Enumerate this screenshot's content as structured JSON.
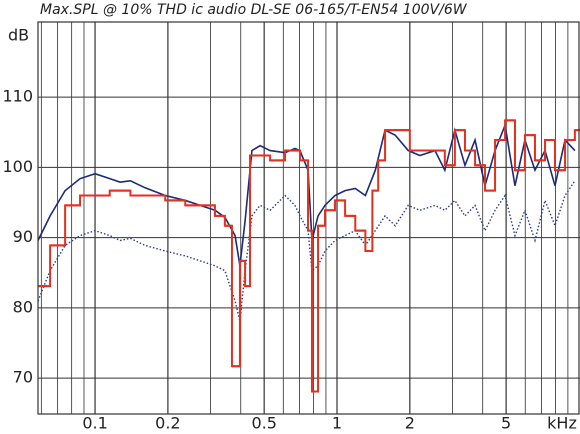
{
  "chart_data": {
    "type": "line",
    "title": "Max.SPL @ 10% THD ic audio DL-SE 06-165/T-EN54 100V/6W",
    "y_label": "dB",
    "x_label": "kHz",
    "log_x": true,
    "grid": true,
    "xlim": [
      0.0581,
      10.1
    ],
    "ylim": [
      64.9,
      120.7
    ],
    "xticks": [
      0.1,
      0.2,
      0.5,
      1,
      2,
      5
    ],
    "xminor": [
      0.06,
      0.07,
      0.08,
      0.09,
      0.3,
      0.4,
      0.6,
      0.7,
      0.8,
      0.9,
      3,
      4,
      6,
      7,
      8,
      9,
      10
    ],
    "yticks": [
      70,
      80,
      90,
      100,
      110
    ],
    "series": [
      {
        "color": "#1c2a78",
        "style": "solid",
        "x": [
          0.0581,
          0.0652,
          0.0752,
          0.0867,
          0.1,
          0.115,
          0.127,
          0.14,
          0.161,
          0.195,
          0.236,
          0.272,
          0.313,
          0.344,
          0.379,
          0.397,
          0.417,
          0.445,
          0.481,
          0.529,
          0.61,
          0.67,
          0.703,
          0.759,
          0.788,
          0.835,
          0.892,
          0.981,
          1.08,
          1.19,
          1.31,
          1.44,
          1.58,
          1.74,
          1.97,
          2.2,
          2.54,
          2.79,
          3.07,
          3.38,
          3.72,
          4.09,
          4.5,
          4.95,
          5.44,
          5.98,
          6.58,
          7.24,
          7.96,
          8.76,
          9.62
        ],
        "values": [
          89.6,
          93.1,
          96.7,
          98.4,
          99.1,
          98.4,
          97.9,
          98.1,
          97.1,
          96,
          95.3,
          94.6,
          93.9,
          92.9,
          90.3,
          86,
          92.4,
          102.4,
          103.1,
          102.4,
          102.1,
          102.7,
          102.4,
          99.6,
          89.6,
          93.1,
          94.6,
          96,
          96.7,
          97,
          96,
          99.6,
          105.3,
          104.6,
          102.4,
          101.7,
          102.4,
          99.6,
          105.3,
          100.3,
          103.9,
          97.4,
          102.4,
          106,
          97.4,
          103.9,
          99.6,
          102.4,
          97.4,
          103.9,
          102.4
        ]
      },
      {
        "color": "#2a3a90",
        "style": "dotted",
        "x": [
          0.0581,
          0.0652,
          0.0752,
          0.0867,
          0.1,
          0.115,
          0.127,
          0.14,
          0.161,
          0.195,
          0.236,
          0.272,
          0.313,
          0.344,
          0.379,
          0.397,
          0.417,
          0.445,
          0.481,
          0.529,
          0.61,
          0.67,
          0.703,
          0.759,
          0.788,
          0.835,
          0.892,
          0.981,
          1.08,
          1.19,
          1.31,
          1.44,
          1.58,
          1.74,
          1.97,
          2.2,
          2.54,
          2.79,
          3.07,
          3.38,
          3.72,
          4.09,
          4.5,
          4.95,
          5.44,
          5.98,
          6.58,
          7.24,
          7.96,
          8.76,
          9.62
        ],
        "values": [
          81,
          85.3,
          88.9,
          90.3,
          91,
          90.3,
          89.6,
          89.9,
          88.9,
          88.1,
          87.4,
          86.7,
          86,
          85.3,
          81,
          78.1,
          85.3,
          93.1,
          94.6,
          93.9,
          96,
          94.6,
          93.1,
          91,
          85.3,
          86,
          88.1,
          89.6,
          90.3,
          91,
          88.9,
          91,
          93.1,
          91.7,
          94.6,
          93.9,
          94.6,
          93.9,
          95.3,
          93.1,
          94.6,
          91,
          93.9,
          96,
          90.3,
          93.9,
          89.6,
          95.3,
          91.7,
          96,
          98.1
        ]
      },
      {
        "color": "#e2321f",
        "style": "step",
        "x": [
          0.0581,
          0.0652,
          0.0752,
          0.0867,
          0.1,
          0.115,
          0.14,
          0.161,
          0.195,
          0.236,
          0.272,
          0.313,
          0.344,
          0.368,
          0.397,
          0.417,
          0.437,
          0.481,
          0.529,
          0.61,
          0.703,
          0.759,
          0.788,
          0.835,
          0.892,
          0.981,
          1.08,
          1.19,
          1.31,
          1.4,
          1.48,
          1.58,
          2.0,
          2.54,
          2.79,
          3.07,
          3.38,
          3.72,
          4.09,
          4.5,
          4.95,
          5.44,
          5.98,
          6.58,
          7.24,
          7.96,
          8.76,
          9.62
        ],
        "values": [
          83.1,
          88.9,
          94.6,
          96,
          96,
          96.7,
          96,
          96,
          95.3,
          94.6,
          94.6,
          93.1,
          91.7,
          71.7,
          86.7,
          83.1,
          101.7,
          101.7,
          101,
          102.4,
          101,
          91,
          68.1,
          91.7,
          93.9,
          95.3,
          93.1,
          91,
          88.1,
          96.7,
          101,
          105.3,
          102.4,
          102.4,
          100.3,
          105.3,
          102.4,
          100.3,
          96.7,
          103.9,
          106.7,
          99.6,
          104.6,
          101,
          103.9,
          99.6,
          103.9,
          105.3
        ]
      }
    ]
  }
}
